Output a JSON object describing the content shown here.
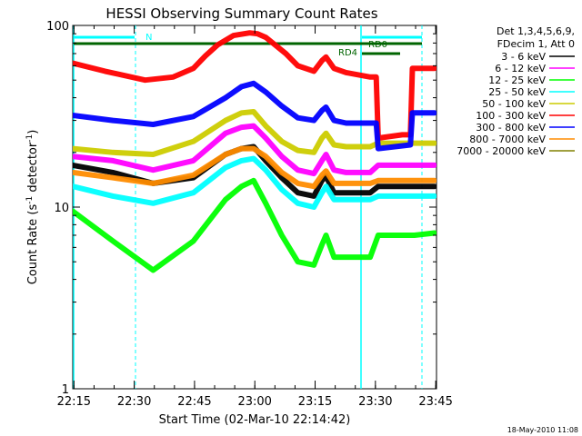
{
  "chart_data": {
    "type": "line",
    "title": "HESSI Observing Summary Count Rates",
    "xlabel": "Start Time (02-Mar-10 22:14:42)",
    "ylabel": "Count Rate (s",
    "ylabel_sup": "-1",
    "ylabel_tail": " detector",
    "ylabel_sup2": "-1",
    "ylabel_close": ")",
    "y_scale": "log",
    "ylim": [
      1,
      100
    ],
    "xlim_min": [
      0,
      90.5
    ],
    "x_ticks": [
      {
        "t": 0.3,
        "label": "22:15"
      },
      {
        "t": 15.3,
        "label": "22:30"
      },
      {
        "t": 30.3,
        "label": "22:45"
      },
      {
        "t": 45.3,
        "label": "23:00"
      },
      {
        "t": 60.3,
        "label": "23:15"
      },
      {
        "t": 75.3,
        "label": "23:30"
      },
      {
        "t": 90.3,
        "label": "23:45"
      }
    ],
    "y_ticks": [
      {
        "v": 100,
        "label": "100"
      },
      {
        "v": 10,
        "label": "10"
      },
      {
        "v": 1,
        "label": "1"
      }
    ],
    "legend_header": [
      "Det 1,3,4,5,6,9,",
      "FDecim 1, Att 0"
    ],
    "legend_position": "right",
    "footer_date": "18-May-2010 11:08",
    "annotations": [
      {
        "label": "N",
        "bar_color": "#00ffff"
      },
      {
        "label": "RD4",
        "bar_color": "#006400"
      },
      {
        "label": "RD0",
        "bar_color": "#006400"
      }
    ],
    "series": [
      {
        "name": "3 - 6 keV",
        "color": "#000000",
        "x": [
          0,
          10,
          20,
          30,
          38,
          42,
          45,
          48,
          52,
          56,
          60,
          62,
          63,
          65,
          68,
          74,
          76,
          85,
          90
        ],
        "y": [
          17,
          15.5,
          13.5,
          14.5,
          19.5,
          21,
          21.5,
          18,
          14.5,
          12,
          11.5,
          14,
          14.8,
          12,
          12,
          12,
          13,
          13,
          13
        ]
      },
      {
        "name": "6 - 12 keV",
        "color": "#ff00ff",
        "x": [
          0,
          10,
          20,
          30,
          38,
          42,
          45,
          48,
          52,
          56,
          60,
          62,
          63,
          65,
          68,
          74,
          76,
          85,
          90
        ],
        "y": [
          19,
          18,
          16,
          18,
          25.5,
          27.5,
          28,
          24,
          19,
          16,
          15.3,
          18,
          19.5,
          16,
          15.5,
          15.5,
          17,
          17,
          17
        ]
      },
      {
        "name": "12 - 25 keV",
        "color": "#00ff00",
        "x": [
          0,
          10,
          20,
          30,
          38,
          42,
          45,
          48,
          52,
          56,
          60,
          62,
          63,
          65,
          68,
          74,
          76,
          85,
          90
        ],
        "y": [
          9.5,
          6.5,
          4.5,
          6.5,
          11,
          13,
          14,
          10.5,
          7,
          5,
          4.8,
          6.2,
          7,
          5.3,
          5.3,
          5.3,
          7,
          7,
          7.2
        ]
      },
      {
        "name": "25 - 50 keV",
        "color": "#00ffff",
        "x": [
          0,
          10,
          20,
          30,
          38,
          42,
          45,
          48,
          52,
          56,
          60,
          62,
          63,
          65,
          68,
          74,
          76,
          85,
          90
        ],
        "y": [
          13,
          11.5,
          10.5,
          12,
          16.5,
          18,
          18.5,
          16,
          12.5,
          10.5,
          10,
          12,
          13,
          11,
          11,
          11,
          11.5,
          11.5,
          11.5
        ]
      },
      {
        "name": "50 - 100 keV",
        "color": "#cccc00",
        "x": [
          0,
          10,
          20,
          30,
          38,
          42,
          45,
          48,
          52,
          56,
          60,
          62,
          63,
          65,
          68,
          74,
          76,
          85,
          90
        ],
        "y": [
          21,
          20,
          19.5,
          23,
          30,
          33,
          33.5,
          28,
          23,
          20.5,
          20,
          24,
          25.5,
          22,
          21.5,
          21.5,
          22.5,
          22.5,
          22.5
        ]
      },
      {
        "name": "100 - 300 keV",
        "color": "#ff0000",
        "x": [
          0,
          8,
          18,
          25,
          30,
          33,
          36,
          40,
          44,
          46,
          48,
          53,
          56,
          60,
          62,
          63,
          65,
          68,
          74,
          75.5,
          76,
          82,
          84,
          84.5,
          90
        ],
        "y": [
          62,
          56,
          50,
          52,
          58,
          68,
          78,
          88,
          91,
          90,
          86,
          70,
          60,
          56,
          64,
          67,
          58,
          55,
          52,
          52,
          24,
          25,
          25,
          58,
          58
        ]
      },
      {
        "name": "300 - 800 keV",
        "color": "#0000ff",
        "x": [
          0,
          10,
          20,
          30,
          38,
          42,
          45,
          48,
          52,
          56,
          60,
          62,
          63,
          65,
          68,
          74,
          75.5,
          76,
          84,
          84.5,
          90
        ],
        "y": [
          32,
          30,
          28.5,
          31.5,
          40,
          46,
          48,
          43,
          36,
          31,
          30,
          34,
          35.5,
          30,
          29,
          29,
          29,
          21,
          22,
          33,
          33
        ]
      },
      {
        "name": "800 - 7000 keV",
        "color": "#ff8c00",
        "x": [
          0,
          10,
          20,
          30,
          38,
          42,
          45,
          48,
          52,
          56,
          60,
          62,
          63,
          65,
          68,
          74,
          76,
          85,
          90
        ],
        "y": [
          15.5,
          14.5,
          13.5,
          15,
          19.5,
          21,
          21,
          19,
          15.5,
          13.5,
          13,
          15,
          15.8,
          13.5,
          13.5,
          13.5,
          14,
          14,
          14
        ]
      },
      {
        "name": "7000 - 20000 keV",
        "color": "#808000",
        "x": [],
        "y": []
      }
    ]
  }
}
